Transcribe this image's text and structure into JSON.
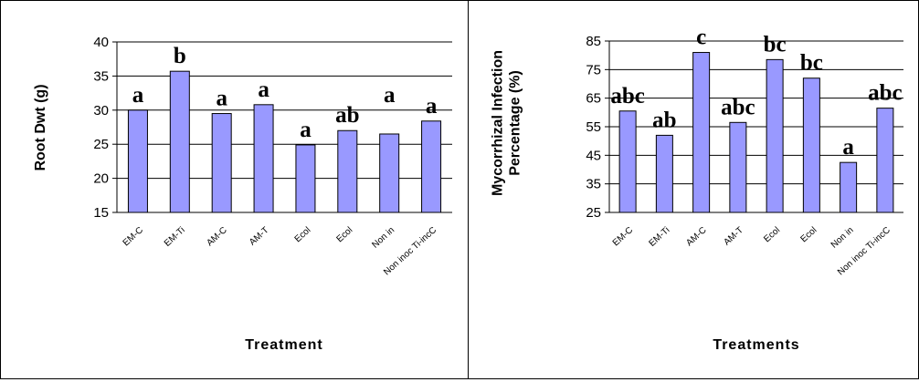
{
  "colors": {
    "bar_fill": "#9999ff",
    "bar_stroke": "#000000",
    "gridline": "#000000"
  },
  "chart_data": [
    {
      "type": "bar",
      "title": "",
      "xlabel": "Treatment",
      "ylabel": "Root Dwt (g)",
      "ylim": [
        15,
        40
      ],
      "yticks": [
        15,
        20,
        25,
        30,
        35,
        40
      ],
      "grid": true,
      "categories": [
        "EM-C",
        "EM-Ti",
        "AM-C",
        "AM-T",
        "Ecol",
        "Ecol",
        "Non in",
        "Non inoc Ti-incC"
      ],
      "values": [
        30.0,
        35.7,
        29.5,
        30.8,
        24.9,
        27.0,
        26.5,
        28.4
      ],
      "significance_labels": [
        "a",
        "b",
        "a",
        "a",
        "a",
        "ab",
        "a",
        "a"
      ]
    },
    {
      "type": "bar",
      "title": "",
      "xlabel": "Treatments",
      "ylabel": "Mycorrhizal Infection Percentage (%)",
      "ylabel_lines": [
        "Mycorrhizal Infection",
        "Percentage (%)"
      ],
      "ylim": [
        25,
        85
      ],
      "yticks": [
        25,
        35,
        45,
        55,
        65,
        75,
        85
      ],
      "grid": true,
      "categories": [
        "EM-C",
        "EM-Ti",
        "AM-C",
        "AM-T",
        "Ecol",
        "Ecol",
        "Non in",
        "Non inoc Ti-incC"
      ],
      "values": [
        60.5,
        52.0,
        81.0,
        56.5,
        78.5,
        72.0,
        42.5,
        61.5
      ],
      "significance_labels": [
        "abc",
        "ab",
        "c",
        "abc",
        "bc",
        "bc",
        "a",
        "abc"
      ]
    }
  ]
}
